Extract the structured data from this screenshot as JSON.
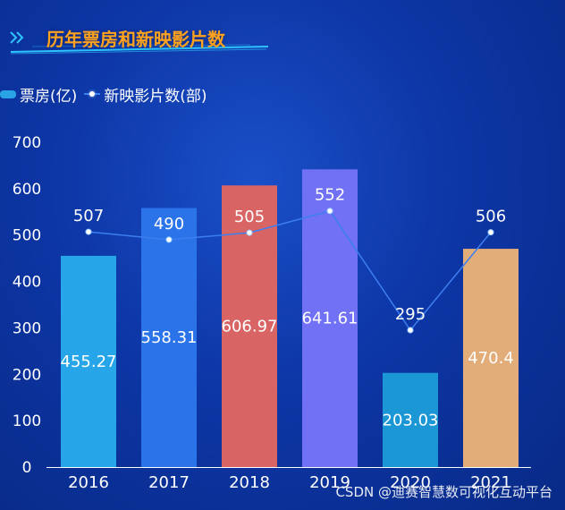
{
  "title": "历年票房和新映影片数",
  "legend": {
    "bar": "票房(亿)",
    "line": "新映影片数(部)"
  },
  "watermark": "CSDN @迪赛智慧数可视化互动平台",
  "colors": {
    "title": "#ffa21f",
    "line": "#3c7ff0",
    "axis": "#ffffff"
  },
  "chart_data": {
    "type": "bar",
    "title": "历年票房和新映影片数",
    "categories": [
      "2016",
      "2017",
      "2018",
      "2019",
      "2020",
      "2021"
    ],
    "ylim": [
      0,
      700
    ],
    "yticks": [
      0,
      100,
      200,
      300,
      400,
      500,
      600,
      700
    ],
    "series": [
      {
        "name": "票房(亿)",
        "type": "bar",
        "values": [
          455.27,
          558.31,
          606.97,
          641.61,
          203.03,
          470.4
        ],
        "colors": [
          "#26a6e8",
          "#2b73e9",
          "#d86464",
          "#7071f4",
          "#1b97d6",
          "#e2ad78"
        ]
      },
      {
        "name": "新映影片数(部)",
        "type": "line",
        "values": [
          507,
          490,
          505,
          552,
          295,
          506
        ]
      }
    ],
    "xlabel": "",
    "ylabel": "",
    "grid": false
  }
}
